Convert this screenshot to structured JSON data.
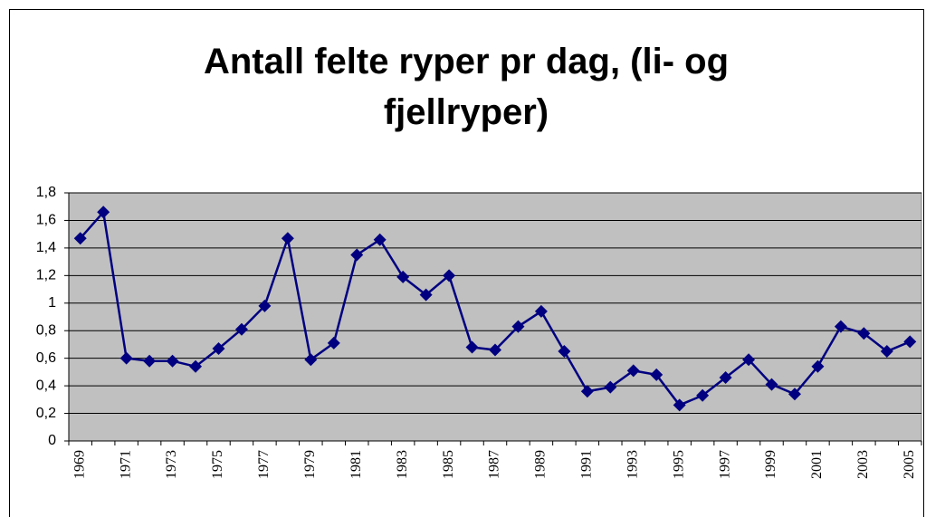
{
  "chart_data": {
    "type": "line",
    "title": "Antall felte ryper pr dag, (li- og fjellryper)",
    "categories": [
      "1969",
      null,
      "1971",
      null,
      "1973",
      null,
      "1975",
      null,
      "1977",
      null,
      "1979",
      null,
      "1981",
      null,
      "1983",
      null,
      "1985",
      null,
      "1987",
      null,
      "1989",
      null,
      "1991",
      null,
      "1993",
      null,
      "1995",
      null,
      "1997",
      null,
      "1999",
      null,
      "2001",
      null,
      "2003",
      null,
      "2005"
    ],
    "values": [
      1.47,
      1.66,
      0.6,
      0.58,
      0.58,
      0.54,
      0.67,
      0.81,
      0.98,
      1.47,
      0.59,
      0.71,
      1.35,
      1.46,
      1.19,
      1.06,
      1.2,
      0.68,
      0.66,
      0.83,
      0.94,
      0.65,
      0.36,
      0.39,
      0.51,
      0.48,
      0.26,
      0.33,
      0.46,
      0.59,
      0.41,
      0.34,
      0.54,
      0.83,
      0.78,
      0.65,
      0.72
    ],
    "color": "#000080",
    "ylim": [
      0,
      1.8
    ],
    "yticks": [
      0,
      {
        "value": 0.2,
        "label": "0,2"
      },
      {
        "value": 0.4,
        "label": "0,4"
      },
      {
        "value": 0.6,
        "label": "0,6"
      },
      {
        "value": 0.8,
        "label": "0,8"
      },
      1,
      {
        "value": 1.2,
        "label": "1,2"
      },
      {
        "value": 1.4,
        "label": "1,4"
      },
      {
        "value": 1.6,
        "label": "1,6"
      },
      {
        "value": 1.8,
        "label": "1,8"
      }
    ],
    "grid": true
  }
}
